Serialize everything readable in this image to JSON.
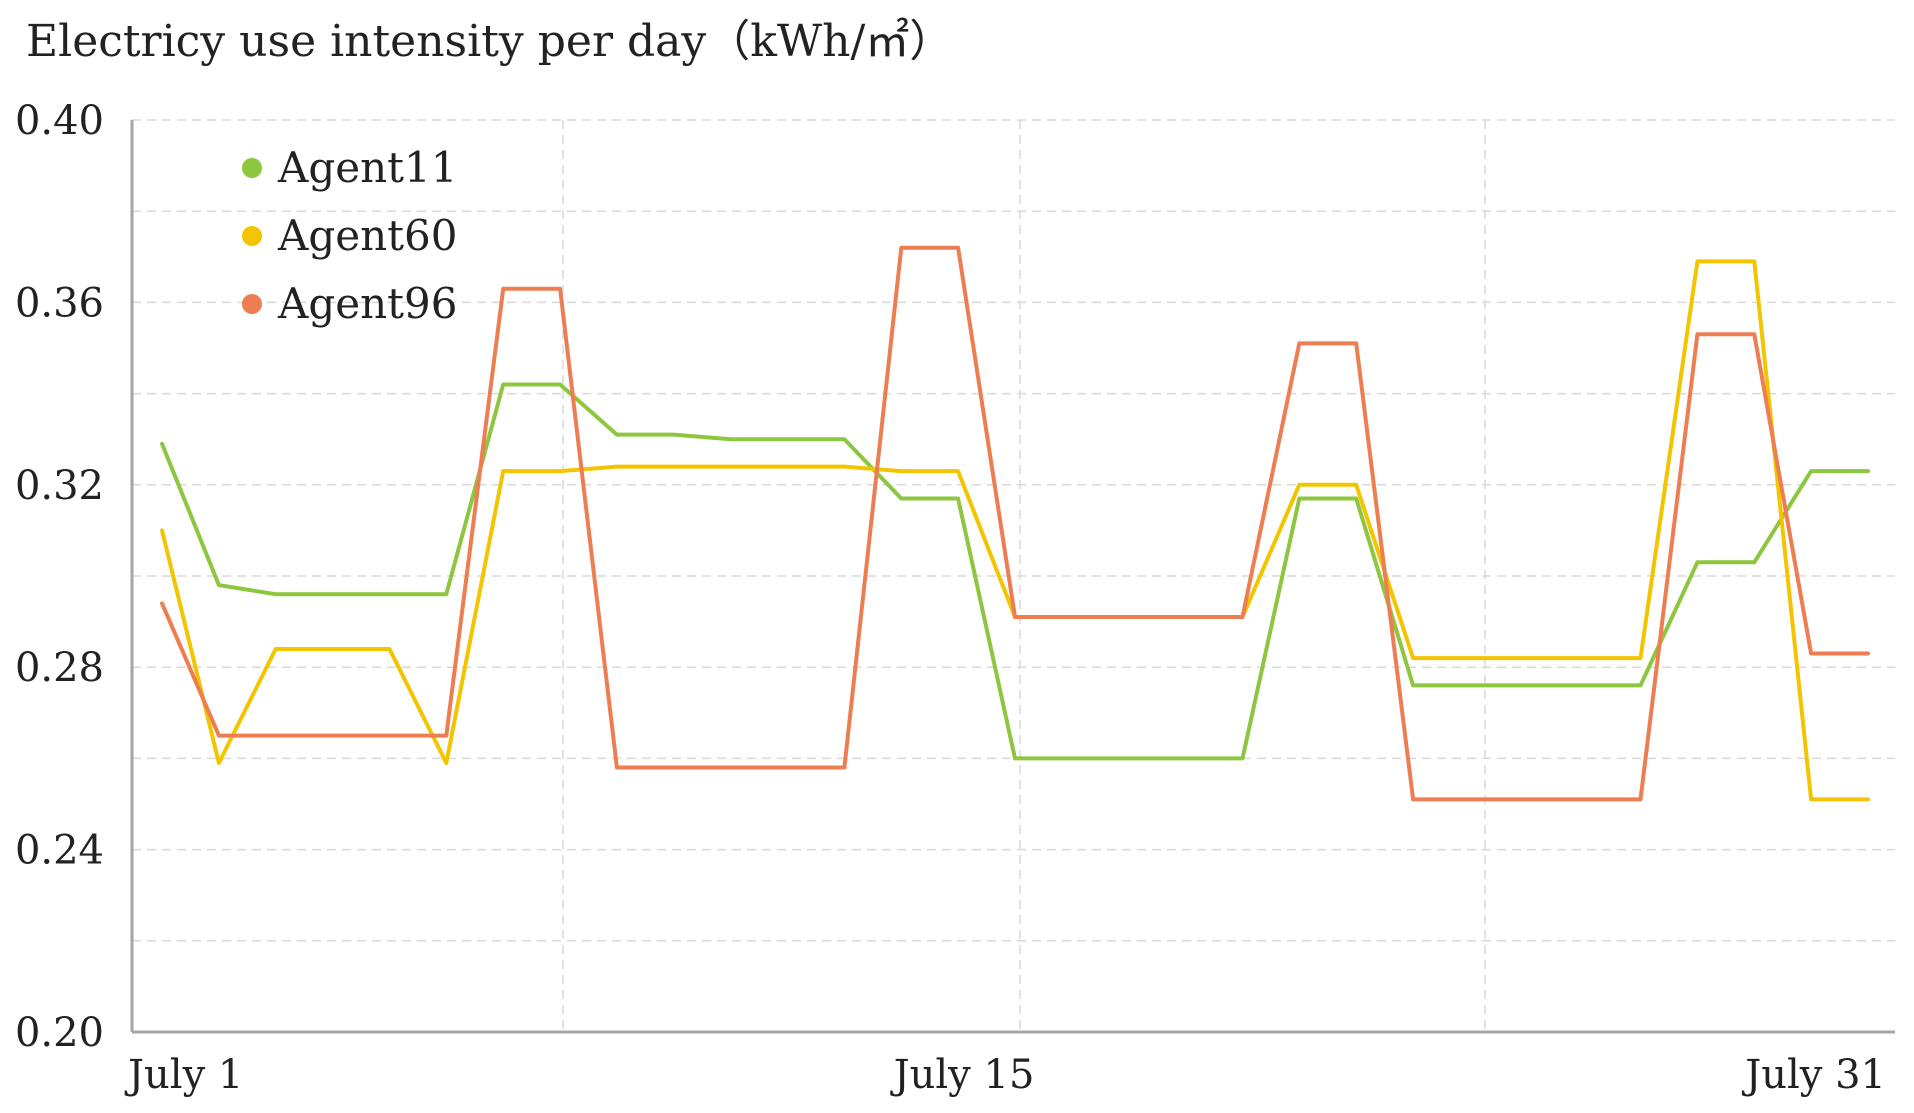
{
  "chart_data": {
    "type": "line",
    "ylabel": "Electricy use intensity per day（kWh/㎡）",
    "ylim": [
      0.2,
      0.4
    ],
    "yticks": [
      "0.40",
      "0.36",
      "0.32",
      "0.28",
      "0.24",
      "0.20"
    ],
    "ytick_values": [
      0.4,
      0.36,
      0.32,
      0.28,
      0.24,
      0.2
    ],
    "x": [
      1,
      2,
      3,
      4,
      5,
      6,
      7,
      8,
      9,
      10,
      11,
      12,
      13,
      14,
      15,
      16,
      17,
      18,
      19,
      20,
      21,
      22,
      23,
      24,
      25,
      26,
      27,
      28,
      29,
      30,
      31
    ],
    "xlim": [
      1,
      31
    ],
    "xtick_labels": [
      {
        "value": 1,
        "label": "July 1"
      },
      {
        "value": 15,
        "label": "July 15"
      },
      {
        "value": 31,
        "label": "July 31"
      }
    ],
    "grid": true,
    "legend_position": "top-left",
    "series": [
      {
        "name": "Agent11",
        "color": "#8dc63f",
        "x": [
          1,
          2,
          3,
          4,
          5,
          6,
          7,
          8,
          9,
          10,
          11,
          12,
          13,
          14,
          15,
          16,
          17,
          18,
          19,
          20,
          21,
          22,
          23,
          24,
          25,
          26,
          27,
          28,
          29,
          30,
          31
        ],
        "values": [
          0.329,
          0.298,
          0.296,
          0.296,
          0.296,
          0.296,
          0.342,
          0.342,
          0.331,
          0.331,
          0.33,
          0.33,
          0.33,
          0.317,
          0.317,
          0.26,
          0.26,
          0.26,
          0.26,
          0.26,
          0.317,
          0.317,
          0.276,
          0.276,
          0.276,
          0.276,
          0.276,
          0.303,
          0.303,
          0.323,
          0.323
        ]
      },
      {
        "name": "Agent60",
        "color": "#f2c500",
        "x": [
          1,
          2,
          3,
          4,
          5,
          6,
          7,
          8,
          9,
          10,
          11,
          12,
          13,
          14,
          15,
          16,
          17,
          18,
          19,
          20,
          21,
          22,
          23,
          24,
          25,
          26,
          27,
          28,
          29,
          30,
          31
        ],
        "values": [
          0.31,
          0.259,
          0.284,
          0.284,
          0.284,
          0.259,
          0.323,
          0.323,
          0.324,
          0.324,
          0.324,
          0.324,
          0.324,
          0.323,
          0.323,
          0.291,
          0.291,
          0.291,
          0.291,
          0.291,
          0.32,
          0.32,
          0.282,
          0.282,
          0.282,
          0.282,
          0.282,
          0.369,
          0.369,
          0.251,
          0.251
        ]
      },
      {
        "name": "Agent96",
        "color": "#ee7d52",
        "x": [
          1,
          2,
          3,
          4,
          5,
          6,
          7,
          8,
          9,
          10,
          11,
          12,
          13,
          14,
          15,
          16,
          17,
          18,
          19,
          20,
          21,
          22,
          23,
          24,
          25,
          26,
          27,
          28,
          29,
          30,
          31
        ],
        "values": [
          0.294,
          0.265,
          0.265,
          0.265,
          0.265,
          0.265,
          0.363,
          0.363,
          0.258,
          0.258,
          0.258,
          0.258,
          0.258,
          0.372,
          0.372,
          0.291,
          0.291,
          0.291,
          0.291,
          0.291,
          0.351,
          0.351,
          0.251,
          0.251,
          0.251,
          0.251,
          0.251,
          0.353,
          0.353,
          0.283,
          0.283
        ]
      }
    ]
  }
}
